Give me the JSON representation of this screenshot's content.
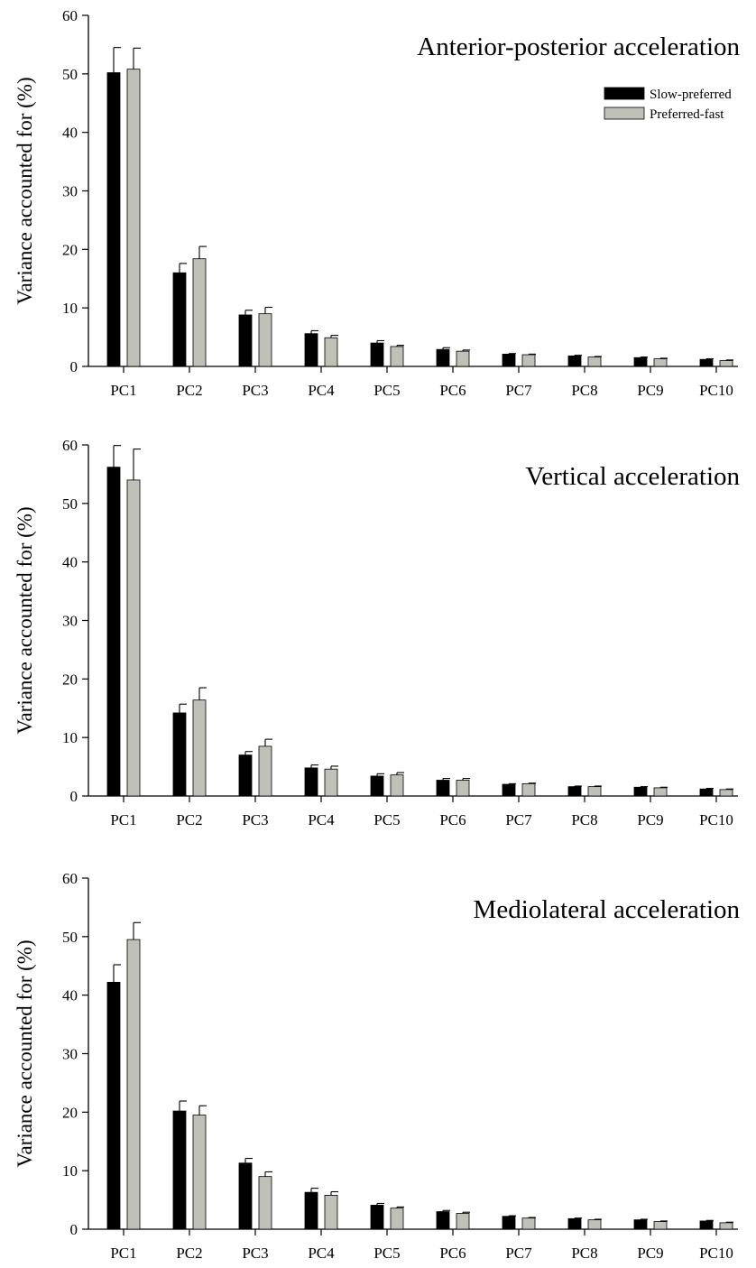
{
  "chart_data": [
    {
      "type": "bar",
      "title": "Anterior-posterior acceleration",
      "ylabel": "Variance accounted for (%)",
      "xlabel": "",
      "ylim": [
        0,
        60
      ],
      "yticks": [
        0,
        10,
        20,
        30,
        40,
        50,
        60
      ],
      "legend": "top-right",
      "categories": [
        "PC1",
        "PC2",
        "PC3",
        "PC4",
        "PC5",
        "PC6",
        "PC7",
        "PC8",
        "PC9",
        "PC10"
      ],
      "series": [
        {
          "name": "Slow-preferred",
          "color": "#000000",
          "values": [
            50.2,
            16.0,
            8.8,
            5.6,
            4.0,
            2.9,
            2.1,
            1.8,
            1.5,
            1.2
          ],
          "errors": [
            4.3,
            1.6,
            0.8,
            0.5,
            0.4,
            0.3,
            0.1,
            0.1,
            0.1,
            0.1
          ]
        },
        {
          "name": "Preferred-fast",
          "color": "#bfc0b8",
          "values": [
            50.8,
            18.4,
            9.0,
            4.9,
            3.4,
            2.6,
            2.0,
            1.6,
            1.3,
            1.0
          ],
          "errors": [
            3.6,
            2.1,
            1.1,
            0.4,
            0.2,
            0.2,
            0.1,
            0.1,
            0.1,
            0.1
          ]
        }
      ]
    },
    {
      "type": "bar",
      "title": "Vertical acceleration",
      "ylabel": "Variance accounted for (%)",
      "xlabel": "",
      "ylim": [
        0,
        60
      ],
      "yticks": [
        0,
        10,
        20,
        30,
        40,
        50,
        60
      ],
      "legend": "",
      "categories": [
        "PC1",
        "PC2",
        "PC3",
        "PC4",
        "PC5",
        "PC6",
        "PC7",
        "PC8",
        "PC9",
        "PC10"
      ],
      "series": [
        {
          "name": "Slow-preferred",
          "color": "#000000",
          "values": [
            56.2,
            14.2,
            7.0,
            4.8,
            3.4,
            2.7,
            2.0,
            1.6,
            1.5,
            1.2
          ],
          "errors": [
            3.7,
            1.5,
            0.6,
            0.5,
            0.4,
            0.3,
            0.1,
            0.1,
            0.1,
            0.1
          ]
        },
        {
          "name": "Preferred-fast",
          "color": "#bfc0b8",
          "values": [
            54.0,
            16.4,
            8.5,
            4.6,
            3.6,
            2.7,
            2.1,
            1.6,
            1.4,
            1.1
          ],
          "errors": [
            5.3,
            2.1,
            1.2,
            0.5,
            0.4,
            0.3,
            0.1,
            0.1,
            0.1,
            0.1
          ]
        }
      ]
    },
    {
      "type": "bar",
      "title": "Mediolateral acceleration",
      "ylabel": "Variance accounted for (%)",
      "xlabel": "",
      "ylim": [
        0,
        60
      ],
      "yticks": [
        0,
        10,
        20,
        30,
        40,
        50,
        60
      ],
      "legend": "",
      "categories": [
        "PC1",
        "PC2",
        "PC3",
        "PC4",
        "PC5",
        "PC6",
        "PC7",
        "PC8",
        "PC9",
        "PC10"
      ],
      "series": [
        {
          "name": "Slow-preferred",
          "color": "#000000",
          "values": [
            42.2,
            20.2,
            11.3,
            6.3,
            4.1,
            3.0,
            2.2,
            1.8,
            1.6,
            1.4
          ],
          "errors": [
            3.0,
            1.7,
            0.8,
            0.7,
            0.3,
            0.2,
            0.1,
            0.1,
            0.1,
            0.1
          ]
        },
        {
          "name": "Preferred-fast",
          "color": "#bfc0b8",
          "values": [
            49.5,
            19.5,
            9.0,
            5.8,
            3.6,
            2.7,
            1.9,
            1.6,
            1.3,
            1.1
          ],
          "errors": [
            2.9,
            1.6,
            0.8,
            0.6,
            0.2,
            0.2,
            0.1,
            0.1,
            0.1,
            0.1
          ]
        }
      ]
    }
  ]
}
